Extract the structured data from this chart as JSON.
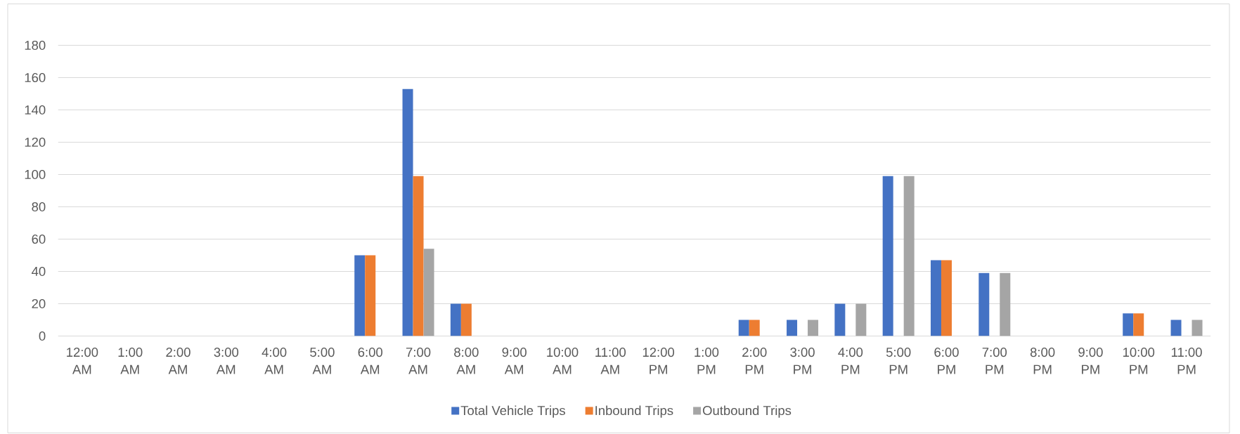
{
  "chart_data": {
    "type": "bar",
    "categories": [
      "12:00 AM",
      "1:00 AM",
      "2:00 AM",
      "3:00 AM",
      "4:00 AM",
      "5:00 AM",
      "6:00 AM",
      "7:00 AM",
      "8:00 AM",
      "9:00 AM",
      "10:00 AM",
      "11:00 AM",
      "12:00 PM",
      "1:00 PM",
      "2:00 PM",
      "3:00 PM",
      "4:00 PM",
      "5:00 PM",
      "6:00 PM",
      "7:00 PM",
      "8:00 PM",
      "9:00 PM",
      "10:00 PM",
      "11:00 PM"
    ],
    "series": [
      {
        "name": "Total Vehicle Trips",
        "color": "#4472c4",
        "values": [
          null,
          null,
          null,
          null,
          null,
          null,
          50,
          153,
          20,
          null,
          null,
          null,
          null,
          null,
          10,
          10,
          20,
          99,
          47,
          39,
          null,
          null,
          14,
          10
        ]
      },
      {
        "name": "Inbound Trips",
        "color": "#ed7d31",
        "values": [
          null,
          null,
          null,
          null,
          null,
          null,
          50,
          99,
          20,
          null,
          null,
          null,
          null,
          null,
          10,
          null,
          null,
          null,
          47,
          null,
          null,
          null,
          14,
          null
        ]
      },
      {
        "name": "Outbound Trips",
        "color": "#a5a5a5",
        "values": [
          null,
          null,
          null,
          null,
          null,
          null,
          null,
          54,
          null,
          null,
          null,
          null,
          null,
          null,
          null,
          10,
          20,
          99,
          null,
          39,
          null,
          null,
          null,
          10
        ]
      }
    ],
    "ylim": [
      0,
      180
    ],
    "yticks": [
      0,
      20,
      40,
      60,
      80,
      100,
      120,
      140,
      160,
      180
    ],
    "grid": "y",
    "legend": "bottom"
  }
}
